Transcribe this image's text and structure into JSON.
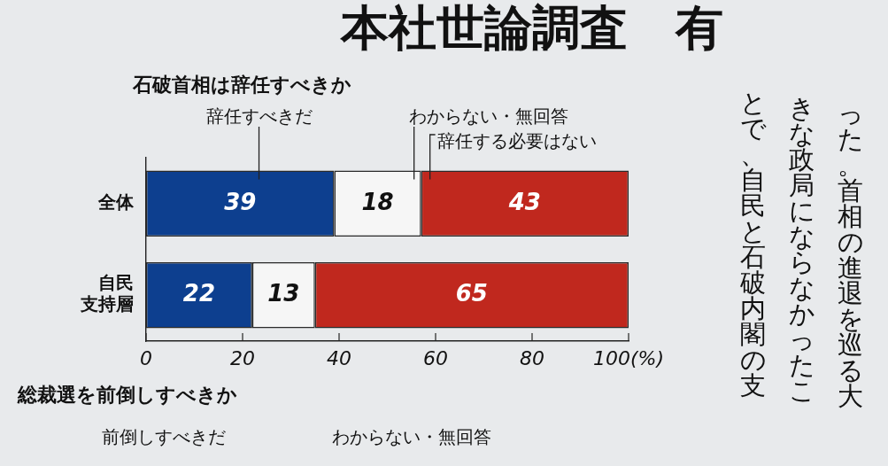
{
  "chart_data": {
    "type": "bar",
    "orientation": "horizontal",
    "stacked": true,
    "title": "石破首相は辞任すべきか",
    "categories": [
      "全体",
      "自民支持層"
    ],
    "series": [
      {
        "name": "辞任すべきだ",
        "color": "#0d3f8f",
        "values": [
          39,
          22
        ]
      },
      {
        "name": "わからない・無回答",
        "color": "#f6f6f6",
        "values": [
          18,
          13
        ]
      },
      {
        "name": "辞任する必要はない",
        "color": "#c0281e",
        "values": [
          43,
          65
        ]
      }
    ],
    "xlim": [
      0,
      100
    ],
    "xticks": [
      0,
      20,
      40,
      60,
      80,
      {
        "value": 100,
        "label": "100(%)"
      }
    ],
    "data_labels": true,
    "annotations": [
      "本社世論調査　有",
      "った。首相の進退を巡る大",
      "きな政局にならなかったこ",
      "とで、自民と石破内閣の支",
      "総裁選を前倒しすべきか",
      "前倒しすべきだ",
      "わからない・無回答"
    ]
  }
}
